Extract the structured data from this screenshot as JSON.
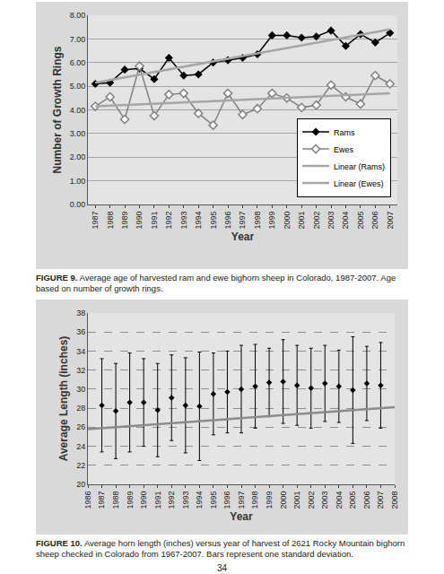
{
  "chart_data": [
    {
      "type": "line",
      "y_label": "Number of Growth Rings",
      "x_label": "Year",
      "x": [
        1987,
        1988,
        1989,
        1990,
        1991,
        1992,
        1993,
        1994,
        1995,
        1996,
        1997,
        1998,
        1999,
        2000,
        2001,
        2002,
        2003,
        2004,
        2005,
        2006,
        2007
      ],
      "xlim": [
        1986.5,
        2007.5
      ],
      "xticks": [
        1987,
        1988,
        1989,
        1990,
        1991,
        1992,
        1993,
        1994,
        1995,
        1996,
        1997,
        1998,
        1999,
        2000,
        2001,
        2002,
        2003,
        2004,
        2005,
        2006,
        2007
      ],
      "ylim": [
        0,
        8
      ],
      "yticks": [
        {
          "value": 0,
          "label": "0.00"
        },
        {
          "value": 1,
          "label": "1.00"
        },
        {
          "value": 2,
          "label": "2.00"
        },
        {
          "value": 3,
          "label": "3.00"
        },
        {
          "value": 4,
          "label": "4.00"
        },
        {
          "value": 5,
          "label": "5.00"
        },
        {
          "value": 6,
          "label": "6.00"
        },
        {
          "value": 7,
          "label": "7.00"
        },
        {
          "value": 8,
          "label": "8.00"
        }
      ],
      "grid": true,
      "legend": "lower right",
      "series": [
        {
          "name": "Rams",
          "color": "#000000",
          "marker": "diamond",
          "line_style": "solid",
          "values": [
            5.1,
            5.15,
            5.7,
            5.75,
            5.3,
            6.2,
            5.45,
            5.5,
            6.0,
            6.1,
            6.2,
            6.35,
            7.15,
            7.15,
            7.05,
            7.1,
            7.35,
            6.7,
            7.2,
            6.85,
            7.25
          ]
        },
        {
          "name": "Ewes",
          "color": "#808080",
          "marker": "diamond-open",
          "line_style": "solid",
          "values": [
            4.15,
            4.55,
            3.6,
            5.85,
            3.75,
            4.65,
            4.7,
            3.85,
            3.35,
            4.7,
            3.8,
            4.05,
            4.7,
            4.5,
            4.1,
            4.2,
            5.05,
            4.55,
            4.25,
            5.45,
            5.1
          ]
        },
        {
          "name": "Linear (Rams)",
          "color": "#a6a6a6",
          "line_style": "solid",
          "x": [
            1987,
            2007
          ],
          "values": [
            5.15,
            7.4
          ]
        },
        {
          "name": "Linear (Ewes)",
          "color": "#a6a6a6",
          "line_style": "solid",
          "x": [
            1987,
            2007
          ],
          "values": [
            4.15,
            4.7
          ]
        }
      ]
    },
    {
      "type": "scatter",
      "y_label": "Average Length (inches)",
      "x_label": "Year",
      "x": [
        1987,
        1988,
        1989,
        1990,
        1991,
        1992,
        1993,
        1994,
        1995,
        1996,
        1997,
        1998,
        1999,
        2000,
        2001,
        2002,
        2003,
        2004,
        2005,
        2006,
        2007
      ],
      "xlim": [
        1986,
        2008
      ],
      "xticks": [
        1986,
        1987,
        1988,
        1989,
        1990,
        1991,
        1992,
        1993,
        1994,
        1995,
        1996,
        1997,
        1998,
        1999,
        2000,
        2001,
        2002,
        2003,
        2004,
        2005,
        2006,
        2007,
        2008
      ],
      "ylim": [
        20,
        38
      ],
      "yticks": [
        20,
        22,
        24,
        26,
        28,
        30,
        32,
        34,
        36,
        38
      ],
      "grid": true,
      "series": [
        {
          "color": "#000000",
          "marker": "diamond",
          "values": [
            28.3,
            27.7,
            28.6,
            28.6,
            27.8,
            29.1,
            28.3,
            28.2,
            29.5,
            29.7,
            30.0,
            30.3,
            30.7,
            30.8,
            30.4,
            30.1,
            30.6,
            30.3,
            29.9,
            30.6,
            30.4
          ],
          "std_dev": [
            4.9,
            5.0,
            5.2,
            4.6,
            4.9,
            4.5,
            5.0,
            5.7,
            4.3,
            4.3,
            4.6,
            4.4,
            3.6,
            4.4,
            4.2,
            4.2,
            4.0,
            3.8,
            5.6,
            3.9,
            4.5
          ]
        },
        {
          "type": "line",
          "color": "#8c8c8c",
          "line_style": "solid",
          "x": [
            1986,
            2008
          ],
          "values": [
            25.8,
            28.1
          ]
        }
      ]
    }
  ],
  "document": {
    "captions": [
      {
        "label": "FIGURE 9.",
        "text": "Average age of harvested ram and ewe bighorn sheep in Colorado, 1987-2007. Age based on number of growth rings."
      },
      {
        "label": "FIGURE 10.",
        "text": "Average horn length (inches) versus year of harvest of 2621 Rocky Mountain bighorn sheep checked in Colorado from 1967-2007. Bars represent one standard deviation."
      }
    ],
    "page_number": 34
  }
}
